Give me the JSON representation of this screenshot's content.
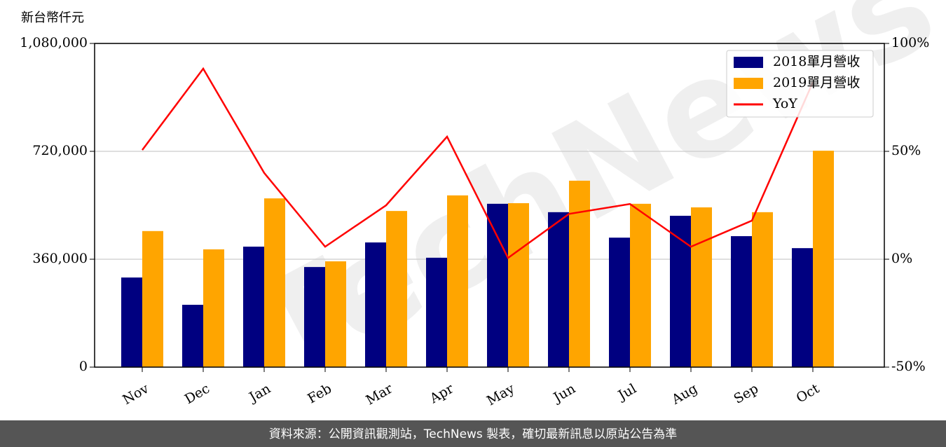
{
  "chart_data": {
    "type": "bar",
    "y_axis_label": "新台幣仟元",
    "watermark": "TechNews",
    "footer": "資料來源：公開資訊觀測站，TechNews 製表，確切最新訊息以原站公告為準",
    "categories": [
      "Nov",
      "Dec",
      "Jan",
      "Feb",
      "Mar",
      "Apr",
      "May",
      "Jun",
      "Jul",
      "Aug",
      "Sep",
      "Oct"
    ],
    "series": [
      {
        "name": "2018單月營收",
        "color": "#000080",
        "values": [
          299000,
          208000,
          402000,
          334000,
          416000,
          365000,
          545000,
          517000,
          432000,
          505000,
          437000,
          397000
        ]
      },
      {
        "name": "2019單月營收",
        "color": "#ffa500",
        "values": [
          454000,
          393000,
          563000,
          353000,
          521000,
          573000,
          547000,
          622000,
          545000,
          533000,
          517000,
          722000
        ]
      },
      {
        "name": "YoY",
        "color": "#ff0000",
        "type": "line",
        "axis": "y2",
        "values": [
          50.6,
          88.3,
          40,
          5.8,
          25,
          56.8,
          0.6,
          21,
          25.6,
          5.8,
          17.9,
          82
        ]
      }
    ],
    "ylim": [
      0,
      1080000
    ],
    "yticks": [
      0,
      {
        "value": 360000,
        "label": "360,000"
      },
      {
        "value": 720000,
        "label": "720,000"
      },
      {
        "value": 1080000,
        "label": "1,080,000"
      }
    ],
    "y2lim": [
      -50,
      100
    ],
    "y2ticks": [
      {
        "value": -50,
        "label": "-50%"
      },
      {
        "value": 0,
        "label": "0%"
      },
      {
        "value": 50,
        "label": "50%"
      },
      {
        "value": 100,
        "label": "100%"
      }
    ],
    "grid": true,
    "legend": "upper right"
  }
}
